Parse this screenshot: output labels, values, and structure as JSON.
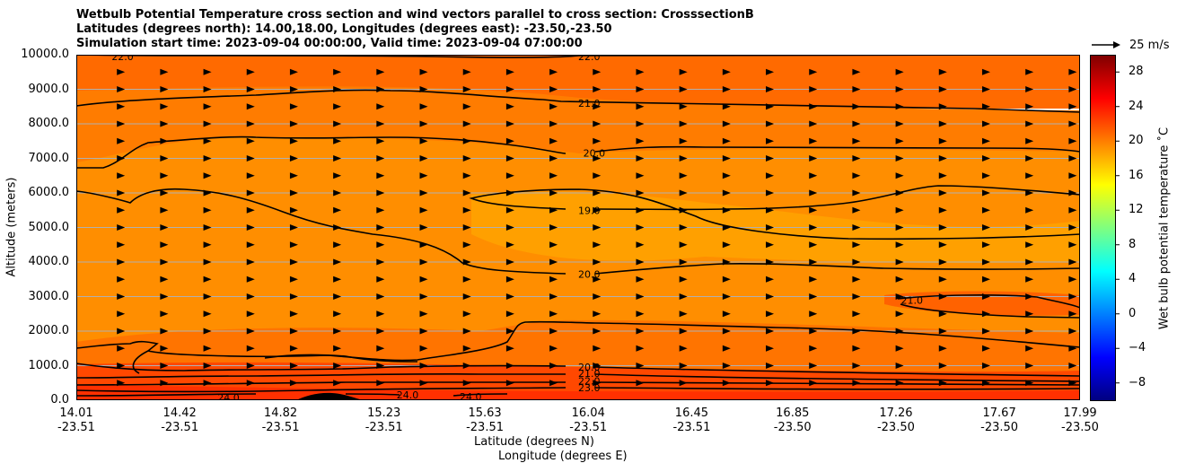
{
  "chart_data": {
    "type": "contourf",
    "title_lines": [
      "Wetbulb Potential Temperature cross section and wind vectors parallel to cross section: CrosssectionB",
      "Latitudes (degrees north): 14.00,18.00, Longitudes (degrees east): -23.50,-23.50",
      "Simulation start time: 2023-09-04 00:00:00, Valid time: 2023-09-04 07:00:00"
    ],
    "xlabel_lat": "Latitude (degrees N)",
    "xlabel_lon": "Longitude (degrees E)",
    "ylabel": "Altitude (meters)",
    "ylim": [
      0,
      10000
    ],
    "xlim": [
      14.01,
      17.99
    ],
    "xticks": [
      {
        "lat": "14.01",
        "lon": "-23.51",
        "value": 14.01
      },
      {
        "lat": "14.42",
        "lon": "-23.51",
        "value": 14.42
      },
      {
        "lat": "14.82",
        "lon": "-23.51",
        "value": 14.82
      },
      {
        "lat": "15.23",
        "lon": "-23.51",
        "value": 15.23
      },
      {
        "lat": "15.63",
        "lon": "-23.51",
        "value": 15.63
      },
      {
        "lat": "16.04",
        "lon": "-23.51",
        "value": 16.04
      },
      {
        "lat": "16.45",
        "lon": "-23.51",
        "value": 16.45
      },
      {
        "lat": "16.85",
        "lon": "-23.50",
        "value": 16.85
      },
      {
        "lat": "17.26",
        "lon": "-23.50",
        "value": 17.26
      },
      {
        "lat": "17.67",
        "lon": "-23.50",
        "value": 17.67
      },
      {
        "lat": "17.99",
        "lon": "-23.50",
        "value": 17.99
      }
    ],
    "yticks": [
      "0.0",
      "1000.0",
      "2000.0",
      "3000.0",
      "4000.0",
      "5000.0",
      "6000.0",
      "7000.0",
      "8000.0",
      "9000.0",
      "10000.0"
    ],
    "colorbar": {
      "label": "Wet bulb potential temperature ˚C",
      "range": [
        -10,
        30
      ],
      "ticks": [
        "−8",
        "−4",
        "0",
        "4",
        "8",
        "12",
        "16",
        "20",
        "24",
        "28"
      ],
      "colors": [
        "#00007f",
        "#0000ff",
        "#007fff",
        "#00ffff",
        "#7fff7f",
        "#ffff00",
        "#ff7f00",
        "#ff0000",
        "#7f0000"
      ]
    },
    "quiver_key": {
      "label": "25 m/s",
      "value": 25
    },
    "contour_labels": [
      {
        "text": "22.0",
        "lat": 14.15,
        "alt": 9950
      },
      {
        "text": "22.0",
        "lat": 16.0,
        "alt": 9950
      },
      {
        "text": "21.0",
        "lat": 16.0,
        "alt": 8600
      },
      {
        "text": "20.0",
        "lat": 16.02,
        "alt": 7150
      },
      {
        "text": "19.0",
        "lat": 16.0,
        "alt": 5500
      },
      {
        "text": "20.0",
        "lat": 16.0,
        "alt": 3650
      },
      {
        "text": "20.0",
        "lat": 16.0,
        "alt": 960
      },
      {
        "text": "21.0",
        "lat": 16.0,
        "alt": 780
      },
      {
        "text": "22.0",
        "lat": 16.0,
        "alt": 560
      },
      {
        "text": "23.0",
        "lat": 16.0,
        "alt": 360
      },
      {
        "text": "21.0",
        "lat": 17.28,
        "alt": 2900
      },
      {
        "text": "24.0",
        "lat": 14.57,
        "alt": 80
      },
      {
        "text": "24.0",
        "lat": 15.28,
        "alt": 150
      },
      {
        "text": "24.0",
        "lat": 15.53,
        "alt": 100
      }
    ],
    "wind_vectors": "uniform eastward (parallel) arrows on a regular grid, ~5-8 m/s"
  }
}
